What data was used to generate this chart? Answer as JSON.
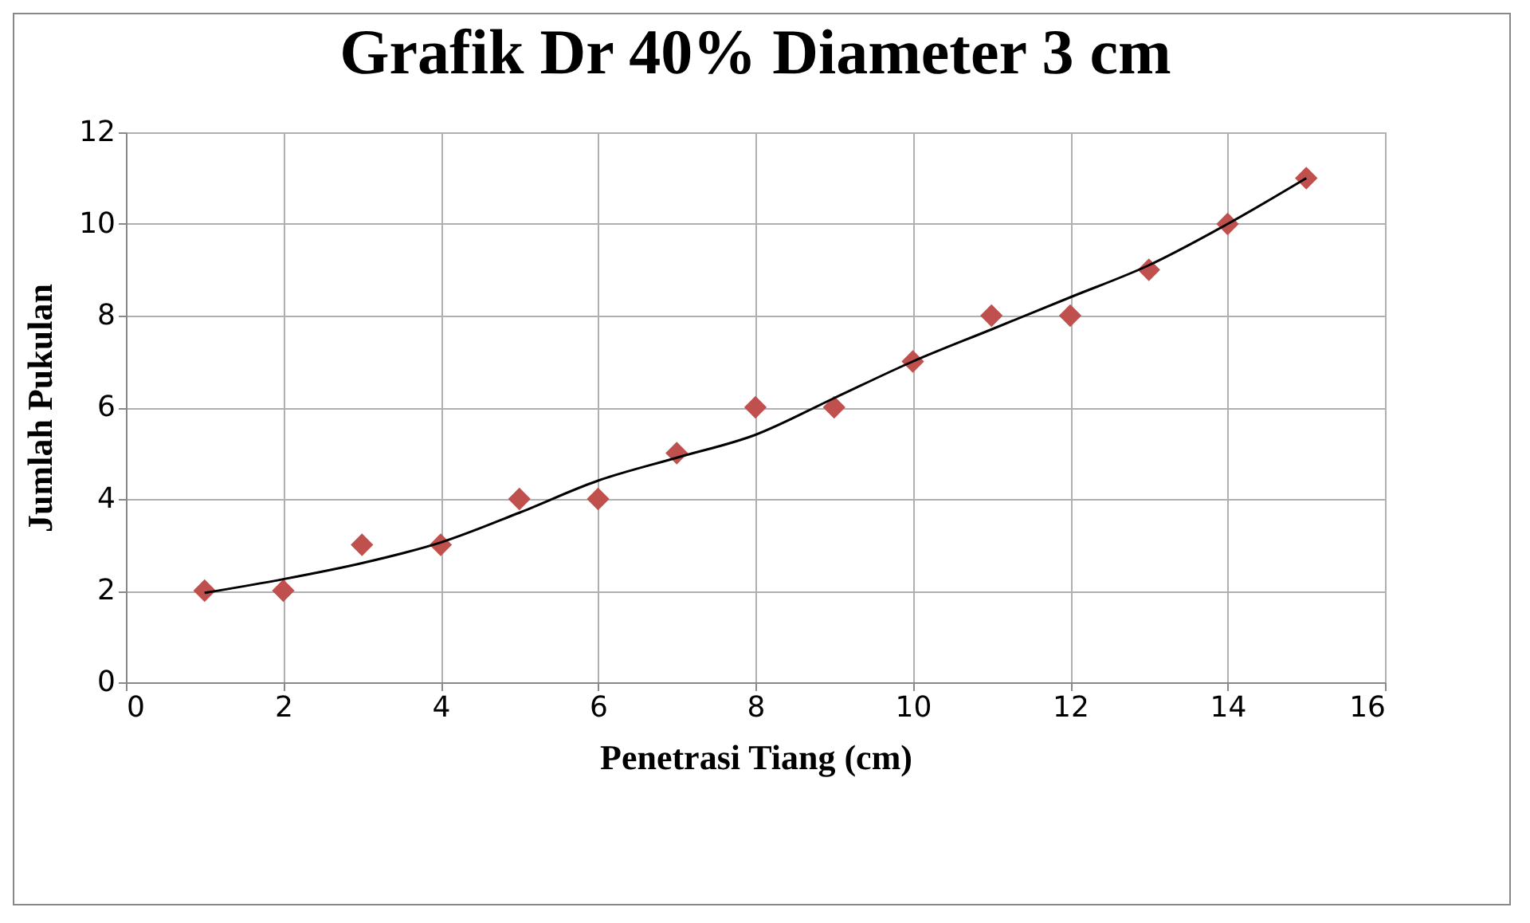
{
  "chart_data": {
    "type": "scatter",
    "title": "Grafik Dr 40% Diameter 3 cm",
    "xlabel": "Penetrasi Tiang (cm)",
    "ylabel": "Jumlah Pukulan",
    "x": [
      1,
      2,
      3,
      4,
      5,
      6,
      7,
      8,
      9,
      10,
      11,
      12,
      13,
      14,
      15
    ],
    "series": [
      {
        "color": "#c0504d",
        "marker": "diamond",
        "values": [
          2,
          2,
          3,
          3,
          4,
          4,
          5,
          6,
          6,
          7,
          8,
          8,
          9,
          10,
          11
        ]
      },
      {
        "type": "line",
        "color": "#000000",
        "marker": "none",
        "x": [
          1,
          2,
          3,
          4,
          5,
          6,
          7,
          8,
          9,
          10,
          11,
          12,
          13,
          14,
          15
        ],
        "values": [
          1.95,
          2.25,
          2.6,
          3.05,
          3.7,
          4.4,
          4.9,
          5.4,
          6.2,
          7.0,
          7.7,
          8.4,
          9.1,
          10.0,
          11.0
        ]
      }
    ],
    "xlim": [
      0,
      16
    ],
    "xticks": [
      0,
      2,
      4,
      6,
      8,
      10,
      12,
      14,
      16
    ],
    "ylim": [
      0,
      12
    ],
    "yticks": [
      0,
      2,
      4,
      6,
      8,
      10,
      12
    ],
    "grid": true
  }
}
